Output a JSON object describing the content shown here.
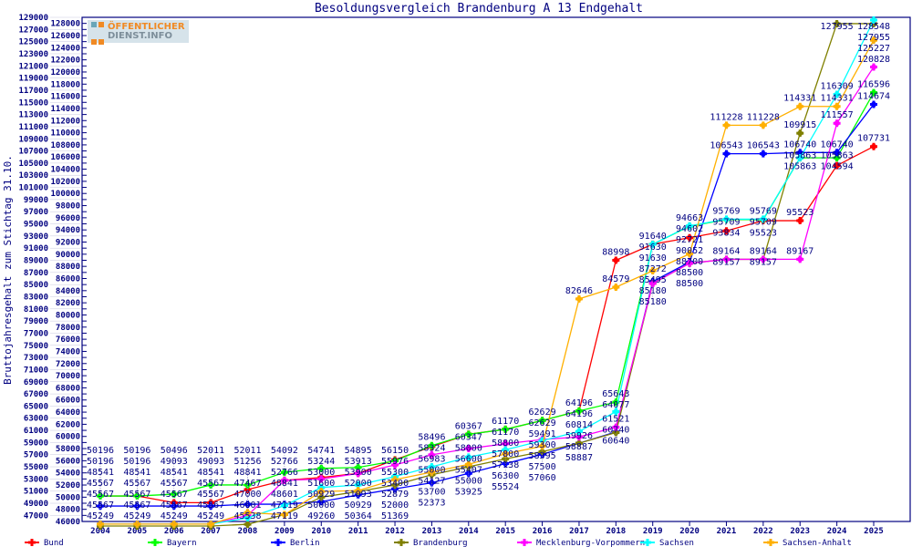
{
  "logo_text": "ÖFFENTLICHER DIENST.INFO",
  "chart_data": {
    "type": "line",
    "title": "Besoldungsvergleich Brandenburg A 13 Endgehalt",
    "xlabel": "",
    "ylabel": "Bruttojahresgehalt zum Stichtag 31.10.",
    "ylim": [
      46000,
      129000
    ],
    "ytick_step": 1000,
    "grid": false,
    "legend_position": "bottom",
    "x": [
      "2004",
      "2005",
      "2006",
      "2007",
      "2008",
      "2009",
      "2010",
      "2011",
      "2012",
      "2013",
      "2014",
      "2015",
      "2016",
      "2017",
      "2018",
      "2019",
      "2020",
      "2021",
      "2022",
      "2023",
      "2024",
      "2025"
    ],
    "series": [
      {
        "name": "Bund",
        "color": "#ff0000",
        "values": [
          50196,
          50196,
          49093,
          49093,
          51256,
          52766,
          53244,
          53913,
          56150,
          58324,
          60367,
          61170,
          62629,
          64196,
          88998,
          91640,
          92721,
          93834,
          95523,
          95523,
          104594,
          107731
        ]
      },
      {
        "name": "Bayern",
        "color": "#00ff00",
        "values": [
          50196,
          50196,
          50496,
          52011,
          52011,
          54092,
          54741,
          54895,
          55976,
          58496,
          60347,
          61170,
          62629,
          64196,
          65643,
          91630,
          94602,
          95709,
          95709,
          105863,
          105863,
          116596
        ]
      },
      {
        "name": "Berlin",
        "color": "#0000ff",
        "values": [
          48541,
          48541,
          48541,
          48541,
          48841,
          48841,
          49260,
          50364,
          51369,
          52373,
          53925,
          55524,
          57060,
          58887,
          60740,
          85495,
          88700,
          106543,
          106543,
          106740,
          106740,
          114674
        ]
      },
      {
        "name": "Brandenburg",
        "color": "#808000",
        "values": [
          45249,
          45249,
          45249,
          45249,
          45538,
          47119,
          50000,
          50929,
          52000,
          53700,
          55000,
          56300,
          57500,
          58887,
          60640,
          85180,
          88500,
          89164,
          89164,
          109915,
          127955,
          127955
        ]
      },
      {
        "name": "Mecklenburg-Vorpommern",
        "color": "#ff00ff",
        "values": [
          45567,
          45567,
          45567,
          45567,
          47000,
          52766,
          53000,
          53900,
          55300,
          56983,
          58000,
          58800,
          59491,
          59926,
          61521,
          85180,
          88500,
          89157,
          89157,
          89167,
          111557,
          120828
        ]
      },
      {
        "name": "Sachsen",
        "color": "#00ffff",
        "values": [
          45567,
          45567,
          45567,
          45567,
          46601,
          48601,
          51600,
          52000,
          53400,
          55000,
          56600,
          57800,
          59300,
          60814,
          64077,
          91630,
          94663,
          95769,
          95769,
          105863,
          116309,
          128548
        ]
      },
      {
        "name": "Sachsen-Anhalt",
        "color": "#ffb000",
        "values": [
          45567,
          45567,
          45567,
          45567,
          47467,
          47119,
          50929,
          51093,
          52879,
          54127,
          55407,
          57138,
          58395,
          82646,
          84579,
          87272,
          90052,
          111228,
          111228,
          114331,
          114331,
          125227
        ]
      }
    ]
  }
}
